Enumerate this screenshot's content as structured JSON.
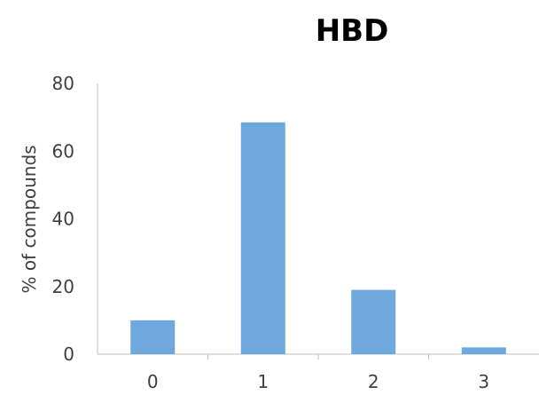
{
  "chart_data": {
    "type": "bar",
    "title": "HBD",
    "xlabel": "",
    "ylabel": "% of compounds",
    "categories": [
      "0",
      "1",
      "2",
      "3"
    ],
    "values": [
      10,
      68.5,
      19,
      2
    ],
    "ylim": [
      0,
      80
    ],
    "yticks": [
      "0",
      "20",
      "40",
      "60",
      "80"
    ],
    "grid": false,
    "legend": "none",
    "bar_color": "#6fa8dc",
    "axis_color": "#bfbfbf",
    "text_color": "#404040"
  }
}
